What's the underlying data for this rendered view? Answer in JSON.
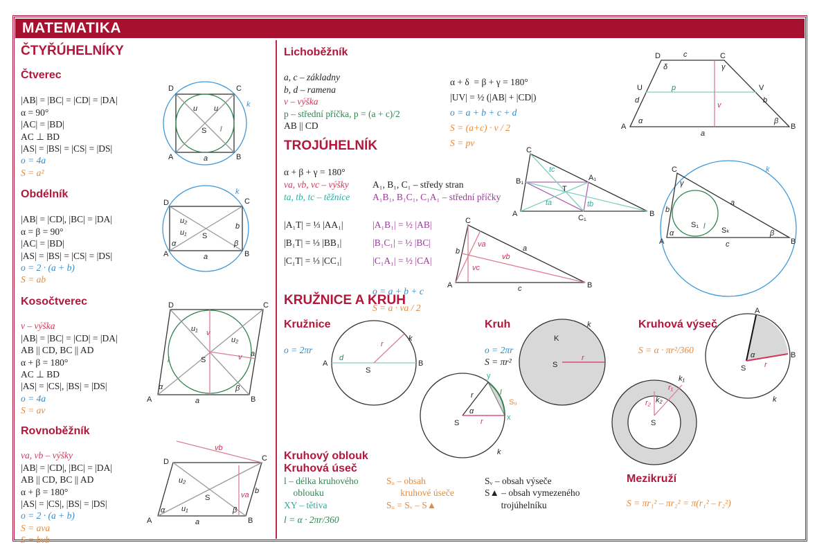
{
  "title": "MATEMATIKA",
  "quad": {
    "heading": "ČTYŘÚHELNÍKY",
    "square": {
      "title": "Čtverec",
      "lines": [
        "|AB| = |BC| = |CD| = |DA|",
        "α = 90°",
        "|AC| = |BD|",
        "AC ⊥ BD",
        "|AS| = |BS| = |CS| = |DS|"
      ],
      "o": "o = 4a",
      "S": "S = a²",
      "labels": [
        "A",
        "B",
        "C",
        "D",
        "a",
        "u",
        "u",
        "S",
        "l",
        "k"
      ]
    },
    "rect": {
      "title": "Obdélník",
      "lines": [
        "|AB| = |CD|, |BC| = |DA|",
        "α = β = 90°",
        "|AC| = |BD|",
        "|AS| = |BS| = |CS| = |DS|"
      ],
      "o": "o = 2 · (a + b)",
      "S": "S = ab",
      "labels": [
        "A",
        "B",
        "C",
        "D",
        "a",
        "b",
        "u₁",
        "u₂",
        "S",
        "k",
        "α",
        "β"
      ]
    },
    "rhombus": {
      "title": "Kosočtverec",
      "v": "v – výška",
      "lines": [
        "|AB| = |BC| = |CD| = |DA|",
        "AB || CD, BC || AD",
        "α + β = 180°",
        "AC ⊥ BD",
        "|AS| = |CS|, |BS| = |DS|"
      ],
      "o": "o = 4a",
      "S": "S = av",
      "labels": [
        "A",
        "B",
        "C",
        "D",
        "a",
        "a",
        "u₁",
        "u₂",
        "v",
        "v",
        "l",
        "S",
        "α",
        "β"
      ]
    },
    "para": {
      "title": "Rovnoběžník",
      "v": "va, vb – výšky",
      "lines": [
        "|AB| = |CD|, |BC| = |DA|",
        "AB || CD, BC || AD",
        "α + β = 180°",
        "|AS| = |CS|, |BS| = |DS|"
      ],
      "o": "o = 2 · (a + b)",
      "S1": "S = ava",
      "S2": "S = bvb",
      "labels": [
        "A",
        "B",
        "C",
        "D",
        "a",
        "b",
        "u₁",
        "u₂",
        "S",
        "va",
        "vb",
        "α",
        "β"
      ]
    }
  },
  "trap": {
    "title": "Lichoběžník",
    "l1": "a, c – základny",
    "l2": "b, d – ramena",
    "v": "v – výška",
    "p": "p – střední příčka, p = (a + c)/2",
    "par": "AB || CD",
    "r1": "α + δ  = β + γ = 180°",
    "r2": "|UV| = ½ (|AB| + |CD|)",
    "o": "o = a + b + c + d",
    "S1": "S = (a+c) · v / 2",
    "S2": "S = pv",
    "labels": [
      "A",
      "B",
      "C",
      "D",
      "U",
      "V",
      "a",
      "b",
      "c",
      "d",
      "p",
      "v",
      "α",
      "β",
      "γ",
      "δ"
    ]
  },
  "tri": {
    "heading": "TROJÚHELNÍK",
    "sum": "α + β + γ = 180°",
    "v": "va, vb, vc – výšky",
    "t": "ta, tb, tc – těžnice",
    "T": [
      "|A₁T| = ⅓ |AA₁|",
      "|B₁T| = ⅓ |BB₁|",
      "|C₁T| = ⅓ |CC₁|"
    ],
    "mid": "A₁, B₁, C₁ – středy stran",
    "mid2": "A₁B₁, B₁C₁, C₁A₁ – střední příčky",
    "M": [
      "|A₁B₁| = ½ |AB|",
      "|B₁C₁| = ½ |BC|",
      "|C₁A₁| = ½ |CA|"
    ],
    "o": "o = a + b + c",
    "S": "S = a · va / 2",
    "labels1": [
      "A",
      "B",
      "C",
      "A₁",
      "B₁",
      "C₁",
      "T",
      "ta",
      "tb",
      "tc"
    ],
    "labels2": [
      "A",
      "B",
      "C",
      "a",
      "b",
      "c",
      "va",
      "vb",
      "vc"
    ],
    "labels3": [
      "A",
      "B",
      "C",
      "a",
      "b",
      "c",
      "S₁",
      "Sₖ",
      "l",
      "k",
      "α",
      "β",
      "γ"
    ]
  },
  "circ": {
    "heading": "KRUŽNICE A KRUH",
    "kruznice": {
      "title": "Kružnice",
      "o": "o = 2πr",
      "labels": [
        "A",
        "B",
        "S",
        "d",
        "r",
        "k"
      ]
    },
    "kruh": {
      "title": "Kruh",
      "o": "o = 2πr",
      "S": "S = πr²",
      "labels": [
        "K",
        "S",
        "r",
        "k"
      ]
    },
    "vysec": {
      "title": "Kruhová výseč",
      "S": "S = α · πr²/360",
      "labels": [
        "A",
        "B",
        "S",
        "r",
        "α",
        "k"
      ]
    },
    "oblouk": {
      "title1": "Kruhový oblouk",
      "title2": "Kruhová úseč",
      "l1": "l – délka kruhového",
      "l2": "    oblouku",
      "xy": "XY – tětiva",
      "l": "l = α · 2πr/360",
      "su1": "Sᵤ – obsah",
      "su2": "      kruhové úseče",
      "su3": "Sᵤ = Sᵥ – S▲",
      "sv1": "Sᵥ – obsah výseče",
      "sv2": "S▲ – obsah vymezeného",
      "sv3": "       trojúhelníku",
      "labels": [
        "S",
        "r",
        "r",
        "α",
        "x",
        "y",
        "l",
        "Sᵤ",
        "k"
      ]
    },
    "mezi": {
      "title": "Mezikruží",
      "S": "S = πr₁² – πr₂² = π(r₁² – r₂²)",
      "labels": [
        "S",
        "r₁",
        "r₂",
        "k₁",
        "k₂"
      ]
    }
  },
  "colors": {
    "brand": "#a8102f",
    "perimeter": "#2d8ccf",
    "area": "#e58a3c",
    "height": "#d5335a",
    "median": "#25aea2",
    "midline": "#9b3a98",
    "incircle": "#2f8450"
  }
}
